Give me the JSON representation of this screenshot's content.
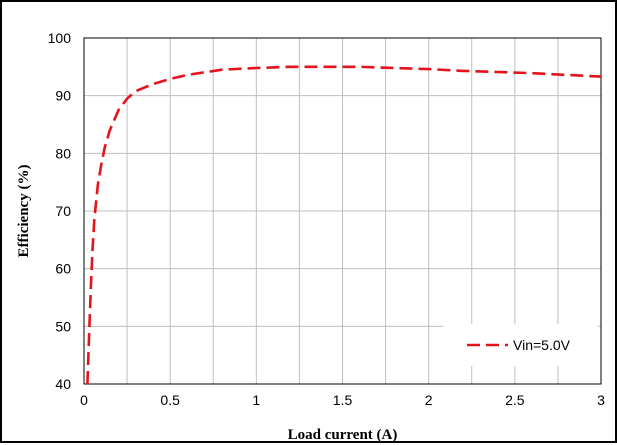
{
  "chart_data": {
    "type": "line",
    "title": "",
    "xlabel": "Load current (A)",
    "ylabel": "Efficiency (%)",
    "xlim": [
      0,
      3
    ],
    "ylim": [
      40,
      100
    ],
    "x_ticks": [
      0,
      0.25,
      0.5,
      0.75,
      1,
      1.25,
      1.5,
      1.75,
      2,
      2.25,
      2.5,
      2.75,
      3
    ],
    "x_tick_labels": [
      "0",
      "",
      "0.5",
      "",
      "1",
      "",
      "1.5",
      "",
      "2",
      "",
      "2.5",
      "",
      "3"
    ],
    "y_ticks": [
      40,
      50,
      60,
      70,
      80,
      90,
      100
    ],
    "y_tick_labels": [
      "40",
      "50",
      "60",
      "70",
      "80",
      "90",
      "100"
    ],
    "grid": true,
    "legend_position": "bottom-right",
    "series": [
      {
        "name": "Vin=5.0V",
        "color": "#e3141b",
        "dash": "dashed",
        "x": [
          0.02,
          0.03,
          0.04,
          0.05,
          0.06,
          0.08,
          0.1,
          0.12,
          0.15,
          0.2,
          0.25,
          0.3,
          0.4,
          0.5,
          0.6,
          0.8,
          1.0,
          1.2,
          1.4,
          1.6,
          1.8,
          2.0,
          2.2,
          2.4,
          2.6,
          2.8,
          3.0
        ],
        "y": [
          40,
          49,
          57,
          63.5,
          68.5,
          74.5,
          78,
          81,
          84,
          87.5,
          89.5,
          90.8,
          92,
          92.9,
          93.6,
          94.5,
          94.8,
          95.0,
          95.0,
          95.0,
          94.8,
          94.6,
          94.3,
          94.1,
          93.9,
          93.6,
          93.3
        ]
      }
    ]
  }
}
